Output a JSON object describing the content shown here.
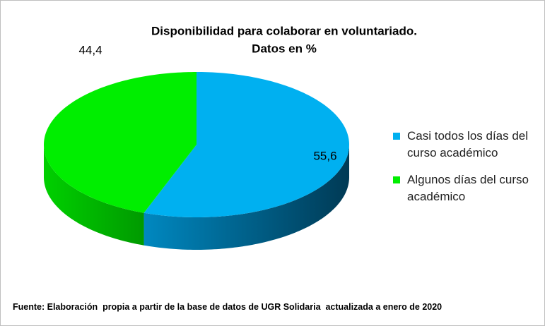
{
  "chart_data": {
    "type": "pie",
    "title": "Disponibilidad para colaborar en voluntariado.",
    "subtitle": "Datos en %",
    "categories": [
      "Casi todos los días del curso académico",
      "Algunos días del curso académico"
    ],
    "values": [
      55.6,
      44.4
    ],
    "value_labels": [
      "55,6",
      "44,4"
    ],
    "colors": [
      "#00b0f0",
      "#00ee00"
    ],
    "legend": "right",
    "note": "Fuente: Elaboración  propia a partir de la base de datos de UGR Solidaria  actualizada a enero de 2020"
  }
}
